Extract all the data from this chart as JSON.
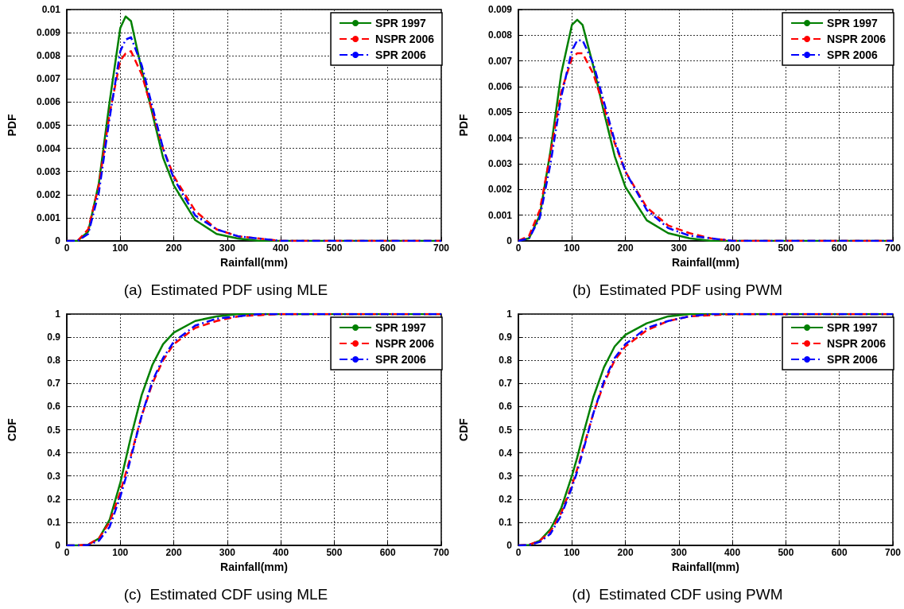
{
  "chart_data": [
    {
      "type": "line",
      "title": "(a)  Estimated PDF using MLE",
      "xlabel": "Rainfall(mm)",
      "ylabel": "PDF",
      "xlim": [
        0,
        700
      ],
      "xticks": [
        0,
        100,
        200,
        300,
        400,
        500,
        600,
        700
      ],
      "ylim": [
        0,
        0.01
      ],
      "yticks": [
        0,
        0.001,
        0.002,
        0.003,
        0.004,
        0.005,
        0.006,
        0.007,
        0.008,
        0.009,
        0.01
      ],
      "grid": true,
      "legend": "top right",
      "marker": "none",
      "x": [
        0,
        20,
        40,
        60,
        80,
        100,
        110,
        120,
        140,
        160,
        180,
        200,
        240,
        280,
        320,
        360,
        400,
        500,
        600,
        700
      ],
      "series": [
        {
          "name": "SPR 1997",
          "color": "#008000",
          "line_style": "solid",
          "values": [
            0,
            0,
            0.0004,
            0.0025,
            0.006,
            0.0092,
            0.0097,
            0.0095,
            0.0074,
            0.0055,
            0.0036,
            0.0024,
            0.0009,
            0.0003,
            0.0001,
            0,
            0,
            0,
            0,
            0
          ]
        },
        {
          "name": "NSPR 2006",
          "color": "#ff0000",
          "line_style": "dashed",
          "values": [
            0,
            0,
            0.0005,
            0.0024,
            0.0055,
            0.0078,
            0.0081,
            0.0082,
            0.0072,
            0.0056,
            0.004,
            0.0028,
            0.0013,
            0.0005,
            0.0002,
            0.0001,
            0,
            0,
            0,
            0
          ]
        },
        {
          "name": "SPR 2006",
          "color": "#0000ff",
          "line_style": "dashdot",
          "values": [
            0,
            0,
            0.0003,
            0.0021,
            0.0053,
            0.0082,
            0.0087,
            0.0088,
            0.0076,
            0.0058,
            0.004,
            0.0027,
            0.0011,
            0.0005,
            0.0002,
            0.0001,
            0,
            0,
            0,
            0
          ]
        }
      ]
    },
    {
      "type": "line",
      "title": "(b)  Estimated PDF using PWM",
      "xlabel": "Rainfall(mm)",
      "ylabel": "PDF",
      "xlim": [
        0,
        700
      ],
      "xticks": [
        0,
        100,
        200,
        300,
        400,
        500,
        600,
        700
      ],
      "ylim": [
        0,
        0.009
      ],
      "yticks": [
        0,
        0.001,
        0.002,
        0.003,
        0.004,
        0.005,
        0.006,
        0.007,
        0.008,
        0.009
      ],
      "grid": true,
      "legend": "top right",
      "marker": "none",
      "x": [
        0,
        20,
        40,
        60,
        80,
        100,
        110,
        120,
        140,
        160,
        180,
        200,
        240,
        280,
        320,
        360,
        400,
        500,
        600,
        700
      ],
      "series": [
        {
          "name": "SPR 1997",
          "color": "#008000",
          "line_style": "solid",
          "values": [
            0,
            0.0001,
            0.001,
            0.0035,
            0.0065,
            0.0084,
            0.0086,
            0.0084,
            0.0068,
            0.005,
            0.0033,
            0.0021,
            0.0008,
            0.0003,
            0.0001,
            0,
            0,
            0,
            0,
            0
          ]
        },
        {
          "name": "NSPR 2006",
          "color": "#ff0000",
          "line_style": "dashed",
          "values": [
            0,
            0.0002,
            0.0012,
            0.0034,
            0.0058,
            0.0071,
            0.0073,
            0.0073,
            0.0065,
            0.0052,
            0.0038,
            0.0027,
            0.0013,
            0.0006,
            0.0003,
            0.0001,
            0,
            0,
            0,
            0
          ]
        },
        {
          "name": "SPR 2006",
          "color": "#0000ff",
          "line_style": "dashdot",
          "values": [
            0,
            0.0001,
            0.0009,
            0.003,
            0.0056,
            0.0074,
            0.0078,
            0.0078,
            0.0069,
            0.0054,
            0.0039,
            0.0027,
            0.0012,
            0.0005,
            0.0002,
            0.0001,
            0,
            0,
            0,
            0
          ]
        }
      ]
    },
    {
      "type": "line",
      "title": "(c)  Estimated CDF using MLE",
      "xlabel": "Rainfall(mm)",
      "ylabel": "CDF",
      "xlim": [
        0,
        700
      ],
      "xticks": [
        0,
        100,
        200,
        300,
        400,
        500,
        600,
        700
      ],
      "ylim": [
        0,
        1
      ],
      "yticks": [
        0,
        0.1,
        0.2,
        0.3,
        0.4,
        0.5,
        0.6,
        0.7,
        0.8,
        0.9,
        1
      ],
      "grid": true,
      "legend": "top right",
      "marker": "none",
      "x": [
        0,
        20,
        40,
        60,
        80,
        100,
        110,
        120,
        140,
        160,
        180,
        200,
        240,
        280,
        320,
        360,
        400,
        500,
        600,
        700
      ],
      "series": [
        {
          "name": "SPR 1997",
          "color": "#008000",
          "line_style": "solid",
          "values": [
            0,
            0,
            0.003,
            0.03,
            0.11,
            0.27,
            0.37,
            0.47,
            0.65,
            0.78,
            0.87,
            0.92,
            0.97,
            0.99,
            1,
            1,
            1,
            1,
            1,
            1
          ]
        },
        {
          "name": "NSPR 2006",
          "color": "#ff0000",
          "line_style": "dashed",
          "values": [
            0,
            0,
            0.004,
            0.03,
            0.1,
            0.23,
            0.31,
            0.39,
            0.56,
            0.7,
            0.8,
            0.87,
            0.94,
            0.97,
            0.99,
            0.995,
            1,
            1,
            1,
            1
          ]
        },
        {
          "name": "SPR 2006",
          "color": "#0000ff",
          "line_style": "dashdot",
          "values": [
            0,
            0,
            0.002,
            0.02,
            0.08,
            0.21,
            0.29,
            0.38,
            0.56,
            0.71,
            0.81,
            0.88,
            0.95,
            0.98,
            0.99,
            1,
            1,
            1,
            1,
            1
          ]
        }
      ]
    },
    {
      "type": "line",
      "title": "(d)  Estimated CDF using PWM",
      "xlabel": "Rainfall(mm)",
      "ylabel": "CDF",
      "xlim": [
        0,
        700
      ],
      "xticks": [
        0,
        100,
        200,
        300,
        400,
        500,
        600,
        700
      ],
      "ylim": [
        0,
        1
      ],
      "yticks": [
        0,
        0.1,
        0.2,
        0.3,
        0.4,
        0.5,
        0.6,
        0.7,
        0.8,
        0.9,
        1
      ],
      "grid": true,
      "legend": "top right",
      "marker": "none",
      "x": [
        0,
        20,
        40,
        60,
        80,
        100,
        110,
        120,
        140,
        160,
        180,
        200,
        240,
        280,
        320,
        360,
        400,
        500,
        600,
        700
      ],
      "series": [
        {
          "name": "SPR 1997",
          "color": "#008000",
          "line_style": "solid",
          "values": [
            0,
            0.002,
            0.02,
            0.07,
            0.16,
            0.3,
            0.38,
            0.47,
            0.64,
            0.77,
            0.86,
            0.91,
            0.96,
            0.99,
            1,
            1,
            1,
            1,
            1,
            1
          ]
        },
        {
          "name": "NSPR 2006",
          "color": "#ff0000",
          "line_style": "dashed",
          "values": [
            0,
            0.003,
            0.02,
            0.06,
            0.14,
            0.26,
            0.33,
            0.41,
            0.57,
            0.7,
            0.8,
            0.86,
            0.93,
            0.97,
            0.99,
            0.995,
            1,
            1,
            1,
            1
          ]
        },
        {
          "name": "SPR 2006",
          "color": "#0000ff",
          "line_style": "dashdot",
          "values": [
            0,
            0.001,
            0.015,
            0.05,
            0.13,
            0.25,
            0.32,
            0.4,
            0.57,
            0.71,
            0.81,
            0.87,
            0.94,
            0.97,
            0.99,
            1,
            1,
            1,
            1,
            1
          ]
        }
      ]
    }
  ]
}
